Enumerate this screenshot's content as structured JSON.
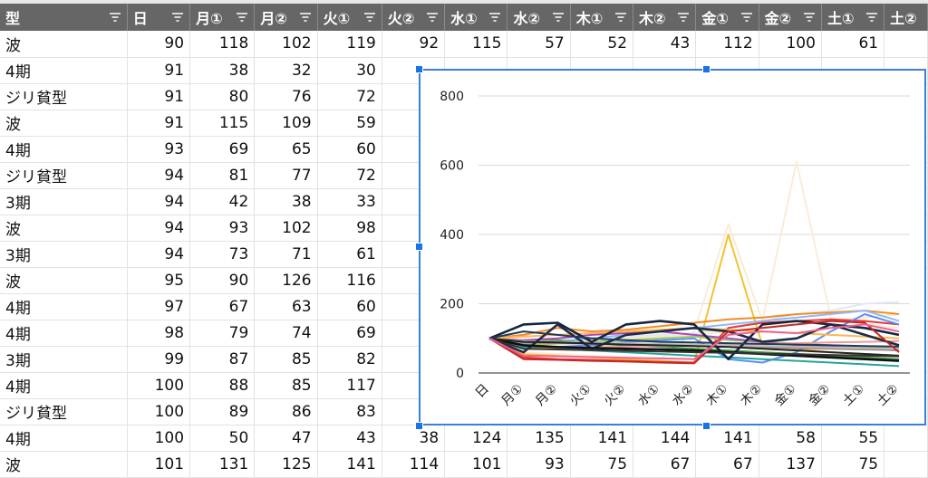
{
  "sheet": {
    "headers": [
      "型",
      "日",
      "月①",
      "月②",
      "火①",
      "火②",
      "水①",
      "水②",
      "木①",
      "木②",
      "金①",
      "金②",
      "土①",
      "土②"
    ],
    "rows": [
      [
        "波",
        "90",
        "118",
        "102",
        "119",
        "92",
        "115",
        "57",
        "52",
        "43",
        "112",
        "100",
        "61",
        ""
      ],
      [
        "4期",
        "91",
        "38",
        "32",
        "30",
        "",
        "",
        "",
        "",
        "",
        "",
        "",
        "",
        ""
      ],
      [
        "ジリ貧型",
        "91",
        "80",
        "76",
        "72",
        "",
        "",
        "",
        "",
        "",
        "",
        "",
        "",
        ""
      ],
      [
        "波",
        "91",
        "115",
        "109",
        "59",
        "",
        "",
        "",
        "",
        "",
        "",
        "",
        "",
        ""
      ],
      [
        "4期",
        "93",
        "69",
        "65",
        "60",
        "",
        "",
        "",
        "",
        "",
        "",
        "",
        "",
        ""
      ],
      [
        "ジリ貧型",
        "94",
        "81",
        "77",
        "72",
        "",
        "",
        "",
        "",
        "",
        "",
        "",
        "",
        ""
      ],
      [
        "3期",
        "94",
        "42",
        "38",
        "33",
        "",
        "",
        "",
        "",
        "",
        "",
        "",
        "",
        ""
      ],
      [
        "波",
        "94",
        "93",
        "102",
        "98",
        "",
        "",
        "",
        "",
        "",
        "",
        "",
        "",
        ""
      ],
      [
        "3期",
        "94",
        "73",
        "71",
        "61",
        "",
        "",
        "",
        "",
        "",
        "",
        "",
        "",
        ""
      ],
      [
        "波",
        "95",
        "90",
        "126",
        "116",
        "",
        "",
        "",
        "",
        "",
        "",
        "",
        "",
        ""
      ],
      [
        "4期",
        "97",
        "67",
        "63",
        "60",
        "",
        "",
        "",
        "",
        "",
        "",
        "",
        "",
        ""
      ],
      [
        "4期",
        "98",
        "79",
        "74",
        "69",
        "",
        "",
        "",
        "",
        "",
        "",
        "",
        "",
        ""
      ],
      [
        "3期",
        "99",
        "87",
        "85",
        "82",
        "",
        "",
        "",
        "",
        "",
        "",
        "",
        "",
        ""
      ],
      [
        "4期",
        "100",
        "88",
        "85",
        "117",
        "",
        "",
        "",
        "",
        "",
        "",
        "",
        "",
        ""
      ],
      [
        "ジリ貧型",
        "100",
        "89",
        "86",
        "83",
        "",
        "",
        "",
        "",
        "",
        "",
        "",
        "",
        ""
      ],
      [
        "4期",
        "100",
        "50",
        "47",
        "43",
        "38",
        "124",
        "135",
        "141",
        "144",
        "141",
        "58",
        "55",
        ""
      ],
      [
        "波",
        "101",
        "131",
        "125",
        "141",
        "114",
        "101",
        "93",
        "75",
        "67",
        "67",
        "137",
        "75",
        ""
      ]
    ]
  },
  "chart_data": {
    "type": "line",
    "categories": [
      "日",
      "月①",
      "月②",
      "火①",
      "火②",
      "水①",
      "水②",
      "木①",
      "木②",
      "金①",
      "金②",
      "土①",
      "土②"
    ],
    "ylim": [
      0,
      800
    ],
    "yticks": [
      0,
      200,
      400,
      600,
      800
    ],
    "grid": true,
    "series": [
      {
        "color": "#f2c230",
        "values": [
          100,
          55,
          50,
          45,
          40,
          35,
          30,
          400,
          80,
          70,
          60,
          55,
          50
        ]
      },
      {
        "color": "#f9ecd8",
        "values": [
          100,
          60,
          55,
          50,
          45,
          40,
          120,
          430,
          150,
          610,
          160,
          140,
          130
        ]
      },
      {
        "color": "#fbe7c9",
        "values": [
          100,
          80,
          90,
          95,
          100,
          105,
          110,
          120,
          130,
          140,
          150,
          160,
          170
        ]
      },
      {
        "color": "#e0e8f4",
        "values": [
          100,
          90,
          95,
          100,
          105,
          110,
          115,
          130,
          150,
          170,
          180,
          200,
          205
        ]
      },
      {
        "color": "#e53935",
        "values": [
          100,
          45,
          40,
          38,
          35,
          32,
          30,
          130,
          145,
          150,
          155,
          150,
          140
        ]
      },
      {
        "color": "#f28c28",
        "values": [
          100,
          110,
          130,
          120,
          125,
          135,
          145,
          155,
          160,
          170,
          175,
          180,
          170
        ]
      },
      {
        "color": "#5b8ff9",
        "values": [
          100,
          70,
          75,
          80,
          90,
          95,
          100,
          40,
          30,
          60,
          120,
          170,
          140
        ]
      },
      {
        "color": "#91b8f5",
        "values": [
          100,
          85,
          90,
          100,
          110,
          120,
          130,
          140,
          150,
          160,
          170,
          180,
          150
        ]
      },
      {
        "color": "#43a047",
        "values": [
          100,
          90,
          95,
          85,
          80,
          75,
          70,
          65,
          60,
          55,
          50,
          45,
          40
        ]
      },
      {
        "color": "#9ccc65",
        "values": [
          100,
          80,
          85,
          90,
          95,
          100,
          105,
          95,
          90,
          85,
          80,
          75,
          70
        ]
      },
      {
        "color": "#26a69a",
        "values": [
          100,
          75,
          70,
          65,
          60,
          55,
          50,
          45,
          40,
          35,
          30,
          25,
          20
        ]
      },
      {
        "color": "#ab47bc",
        "values": [
          100,
          95,
          100,
          110,
          115,
          120,
          110,
          100,
          90,
          80,
          75,
          70,
          65
        ]
      },
      {
        "color": "#ffb74d",
        "values": [
          100,
          105,
          110,
          115,
          120,
          125,
          130,
          125,
          120,
          115,
          110,
          105,
          100
        ]
      },
      {
        "color": "#ef9a9a",
        "values": [
          100,
          70,
          72,
          74,
          76,
          78,
          80,
          82,
          84,
          86,
          88,
          90,
          92
        ]
      },
      {
        "color": "#a1887f",
        "values": [
          100,
          88,
          86,
          84,
          82,
          80,
          78,
          76,
          74,
          72,
          70,
          68,
          66
        ]
      },
      {
        "color": "#bdbdbd",
        "values": [
          100,
          92,
          90,
          88,
          86,
          84,
          82,
          80,
          78,
          76,
          74,
          72,
          70
        ]
      },
      {
        "color": "#17263c",
        "values": [
          100,
          140,
          145,
          90,
          140,
          150,
          140,
          40,
          140,
          150,
          140,
          130,
          110
        ]
      },
      {
        "color": "#1b2d46",
        "values": [
          100,
          60,
          140,
          70,
          110,
          120,
          130,
          120,
          90,
          100,
          140,
          110,
          80
        ]
      },
      {
        "color": "#101010",
        "values": [
          100,
          80,
          75,
          72,
          70,
          68,
          65,
          60,
          55,
          50,
          45,
          40,
          35
        ]
      },
      {
        "color": "#222222",
        "values": [
          100,
          90,
          88,
          85,
          82,
          80,
          78,
          75,
          70,
          65,
          60,
          55,
          50
        ]
      },
      {
        "color": "#333333",
        "values": [
          100,
          70,
          68,
          66,
          64,
          62,
          60,
          58,
          56,
          54,
          52,
          50,
          48
        ]
      },
      {
        "color": "#1f3a5a",
        "values": [
          100,
          120,
          110,
          100,
          95,
          90,
          88,
          86,
          84,
          82,
          80,
          78,
          76
        ]
      },
      {
        "color": "#c62828",
        "values": [
          100,
          40,
          38,
          35,
          33,
          30,
          28,
          120,
          130,
          140,
          150,
          145,
          60
        ]
      },
      {
        "color": "#f06292",
        "values": [
          100,
          50,
          48,
          46,
          44,
          42,
          40,
          110,
          120,
          115,
          130,
          140,
          120
        ]
      }
    ]
  },
  "colors": {
    "header_bg": "#666666",
    "chart_border": "#3b7fd6",
    "handle": "#1a73e8"
  }
}
